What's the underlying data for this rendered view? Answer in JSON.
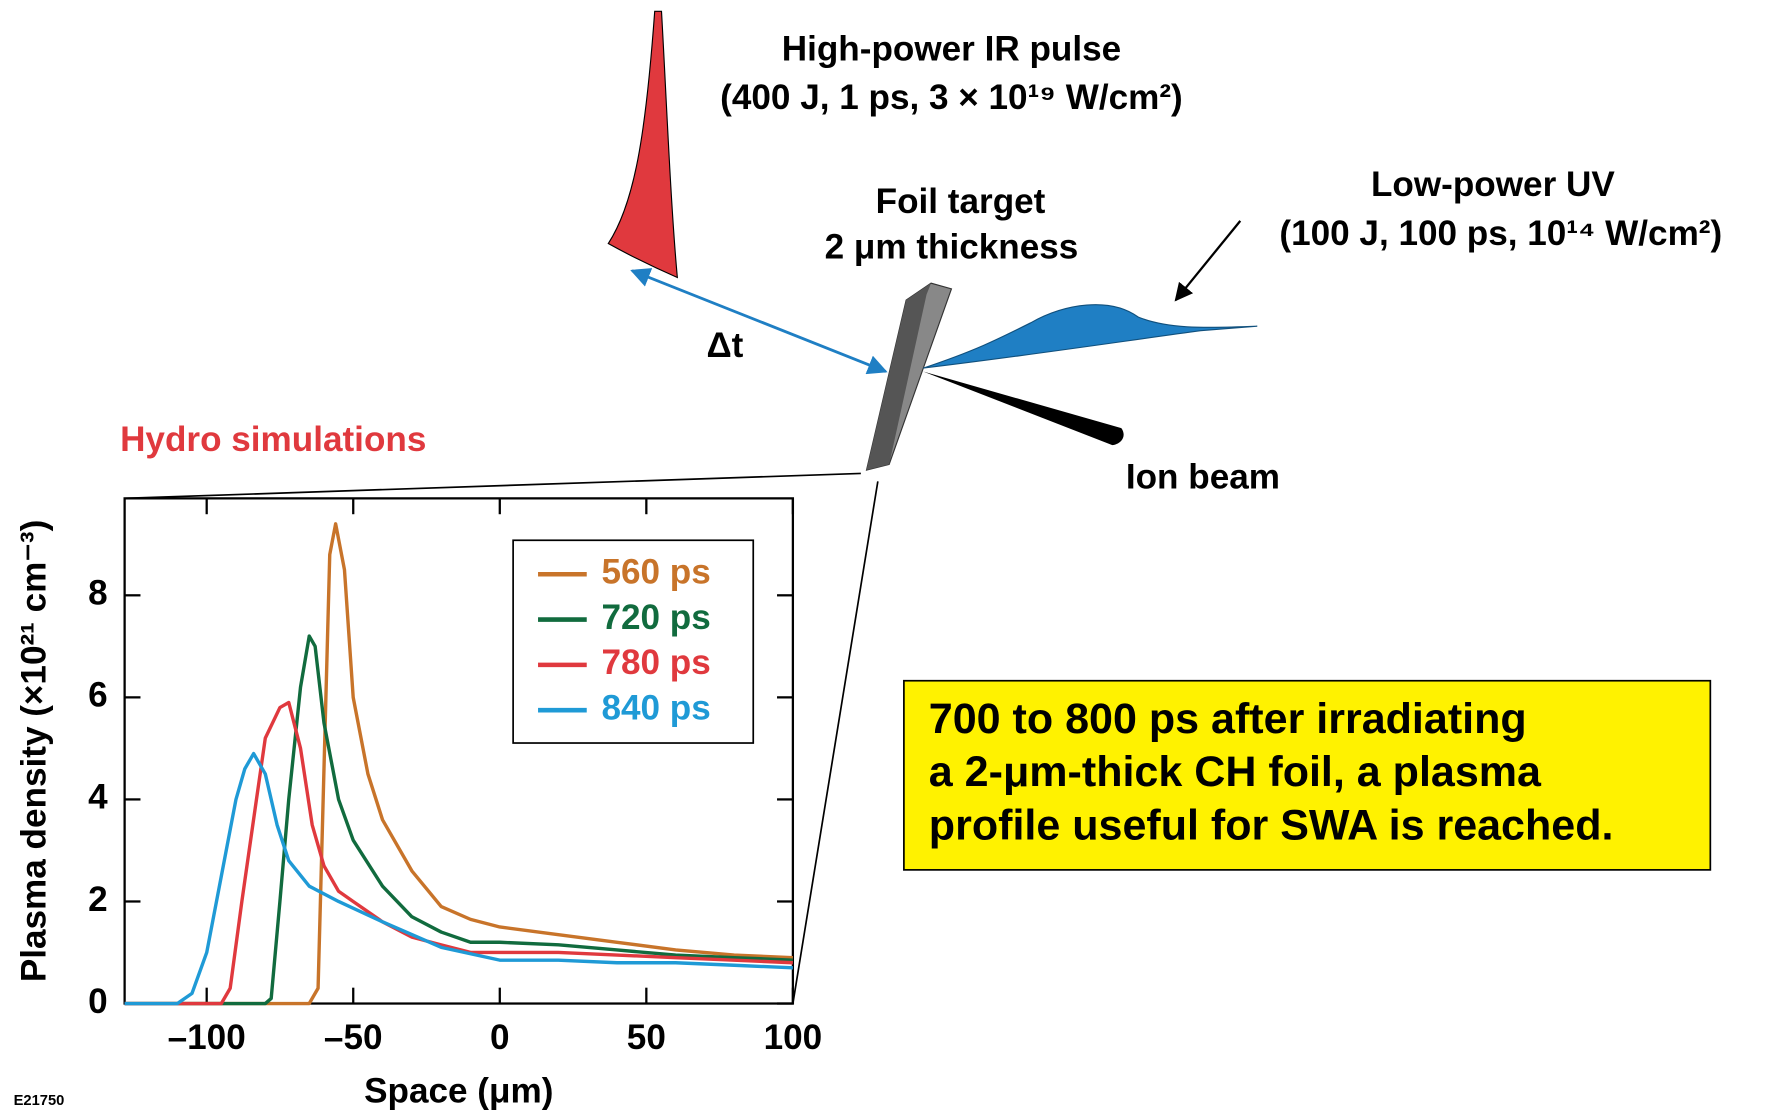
{
  "chart_data": {
    "type": "line",
    "title": "Hydro simulations",
    "x_label": "Space (μm)",
    "y_label": "Plasma density (×10²¹ cm⁻³)",
    "xlim": [
      -128,
      100
    ],
    "ylim": [
      0,
      9.9
    ],
    "xticks": [
      {
        "value": -100,
        "label": "–100"
      },
      {
        "value": -50,
        "label": "–50"
      },
      0,
      50,
      100
    ],
    "yticks": [
      0,
      2,
      4,
      6,
      8
    ],
    "grid": false,
    "legend": "upper right",
    "series": [
      {
        "name": "560 ps",
        "color": "#c8742a",
        "x": [
          -128,
          -65,
          -62,
          -58,
          -56,
          -53,
          -50,
          -45,
          -40,
          -30,
          -20,
          -10,
          0,
          20,
          40,
          60,
          80,
          100
        ],
        "values": [
          0,
          0,
          0.3,
          8.8,
          9.4,
          8.5,
          6,
          4.5,
          3.6,
          2.6,
          1.9,
          1.65,
          1.5,
          1.35,
          1.2,
          1.05,
          0.95,
          0.9
        ]
      },
      {
        "name": "720 ps",
        "color": "#116b3e",
        "x": [
          -128,
          -80,
          -78,
          -75,
          -72,
          -68,
          -65,
          -63,
          -60,
          -55,
          -50,
          -40,
          -30,
          -20,
          -10,
          0,
          20,
          40,
          60,
          80,
          100
        ],
        "values": [
          0,
          0,
          0.1,
          2,
          4,
          6.2,
          7.2,
          7,
          5.5,
          4,
          3.2,
          2.3,
          1.7,
          1.4,
          1.2,
          1.2,
          1.15,
          1.05,
          0.95,
          0.9,
          0.85
        ]
      },
      {
        "name": "780 ps",
        "color": "#e0393e",
        "x": [
          -128,
          -95,
          -92,
          -88,
          -83,
          -80,
          -75,
          -72,
          -68,
          -64,
          -60,
          -55,
          -50,
          -40,
          -30,
          -20,
          -10,
          0,
          20,
          40,
          60,
          80,
          100
        ],
        "values": [
          0,
          0,
          0.3,
          2,
          4,
          5.2,
          5.8,
          5.9,
          5,
          3.5,
          2.7,
          2.2,
          2,
          1.6,
          1.3,
          1.15,
          1.0,
          1.0,
          1.0,
          0.95,
          0.9,
          0.85,
          0.8
        ]
      },
      {
        "name": "840 ps",
        "color": "#1f9ad6",
        "x": [
          -128,
          -110,
          -105,
          -100,
          -95,
          -90,
          -87,
          -84,
          -80,
          -76,
          -72,
          -65,
          -55,
          -40,
          -20,
          0,
          20,
          40,
          60,
          80,
          100
        ],
        "values": [
          0,
          0,
          0.2,
          1,
          2.5,
          4,
          4.6,
          4.9,
          4.5,
          3.5,
          2.8,
          2.3,
          2,
          1.6,
          1.1,
          0.85,
          0.85,
          0.8,
          0.8,
          0.75,
          0.7
        ]
      }
    ],
    "annotations": [
      "High-power IR pulse",
      "(400 J, 1 ps, 3 × 10¹⁹ W/cm²)",
      "Foil target",
      "2 μm thickness",
      "Low-power UV",
      "(100 J, 100 ps, 10¹⁴ W/cm²)",
      "Δt",
      "Ion beam",
      "E21750"
    ],
    "callout": [
      "700 to 800 ps after irradiating",
      "a 2-μm-thick CH foil, a plasma",
      "profile useful for SWA is reached."
    ]
  }
}
